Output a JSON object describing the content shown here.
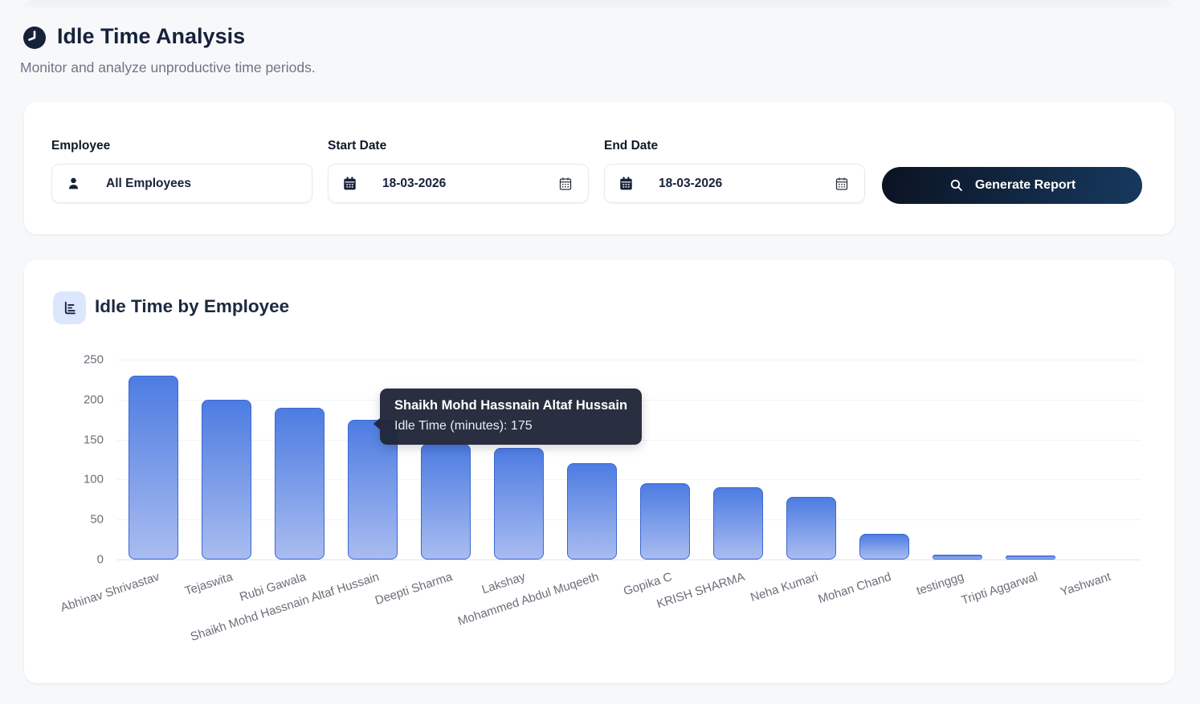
{
  "page": {
    "title": "Idle Time Analysis",
    "subtitle": "Monitor and analyze unproductive time periods."
  },
  "filters": {
    "employee": {
      "label": "Employee",
      "value": "All Employees",
      "icon": "person-icon"
    },
    "start_date": {
      "label": "Start Date",
      "value": "18-03-2026",
      "icon": "calendar-icon"
    },
    "end_date": {
      "label": "End Date",
      "value": "18-03-2026",
      "icon": "calendar-icon"
    },
    "generate_button": {
      "label": "Generate Report",
      "icon": "search-icon"
    }
  },
  "chart_card": {
    "title": "Idle Time by Employee",
    "icon": "bar-chart-icon"
  },
  "chart_data": {
    "type": "bar",
    "title": "Idle Time by Employee",
    "series_name": "Idle Time (minutes)",
    "categories": [
      "Abhinav Shrivastav",
      "Tejaswita",
      "Rubi Gawala",
      "Shaikh Mohd Hassnain Altaf Hussain",
      "Deepti Sharma",
      "Lakshay",
      "Mohammed Abdul Muqeeth",
      "Gopika C",
      "KRISH SHARMA",
      "Neha Kumari",
      "Mohan Chand",
      "testinggg",
      "Tripti Aggarwal",
      "Yashwant"
    ],
    "values": [
      230,
      200,
      190,
      175,
      145,
      140,
      120,
      95,
      90,
      78,
      32,
      6,
      5,
      0
    ],
    "ylim": [
      0,
      250
    ],
    "yticks": [
      0,
      50,
      100,
      150,
      200,
      250
    ],
    "grid": true,
    "legend": false,
    "xlabel": "",
    "ylabel": ""
  },
  "tooltip": {
    "title": "Shaikh Mohd Hassnain Altaf Hussain",
    "line": "Idle Time (minutes): 175",
    "anchor_index": 3
  },
  "colors": {
    "accent_navy": "#16213a",
    "button_gradient_start": "#0c1322",
    "button_gradient_end": "#16395f",
    "bar_top": "#4d7ce2",
    "bar_bottom": "#a9bcf0",
    "bar_border": "#3c67d1",
    "tooltip_bg": "#202738",
    "icon_tile_bg": "#dce7fd",
    "page_bg": "#f7f8fa"
  }
}
